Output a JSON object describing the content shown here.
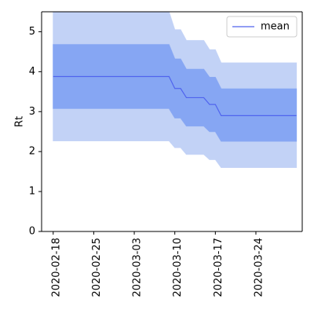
{
  "chart_data": {
    "type": "area",
    "ylabel": "Rt",
    "xlabel": "",
    "ylim": [
      0,
      5.5
    ],
    "xlim": [
      "2020-02-16",
      "2020-04-01"
    ],
    "x_ticks": [
      "2020-02-18",
      "2020-02-25",
      "2020-03-03",
      "2020-03-10",
      "2020-03-17",
      "2020-03-24"
    ],
    "y_ticks": [
      0,
      1,
      2,
      3,
      4,
      5
    ],
    "legend": {
      "position": "top-right",
      "entries": [
        "mean"
      ]
    },
    "grid": false,
    "colors": {
      "mean_line": "#5064ee",
      "band_inner": "#86a6f3",
      "band_outer": "#c2d2f6",
      "axes": "#000000"
    },
    "series": [
      {
        "name": "mean",
        "x": [
          "2020-02-18",
          "2020-03-09",
          "2020-03-10",
          "2020-03-11",
          "2020-03-12",
          "2020-03-15",
          "2020-03-16",
          "2020-03-17",
          "2020-03-18",
          "2020-03-31"
        ],
        "values": [
          3.88,
          3.88,
          3.58,
          3.58,
          3.35,
          3.35,
          3.18,
          3.18,
          2.9,
          2.9
        ]
      }
    ],
    "bands": [
      {
        "level": "outer",
        "x": [
          "2020-02-18",
          "2020-03-09",
          "2020-03-10",
          "2020-03-11",
          "2020-03-12",
          "2020-03-15",
          "2020-03-16",
          "2020-03-17",
          "2020-03-18",
          "2020-03-31"
        ],
        "lower": [
          2.27,
          2.27,
          2.1,
          2.1,
          1.93,
          1.93,
          1.8,
          1.8,
          1.6,
          1.6
        ],
        "upper": [
          5.5,
          5.5,
          5.05,
          5.05,
          4.78,
          4.78,
          4.55,
          4.55,
          4.22,
          4.22
        ]
      },
      {
        "level": "inner",
        "x": [
          "2020-02-18",
          "2020-03-09",
          "2020-03-10",
          "2020-03-11",
          "2020-03-12",
          "2020-03-15",
          "2020-03-16",
          "2020-03-17",
          "2020-03-18",
          "2020-03-31"
        ],
        "lower": [
          3.08,
          3.08,
          2.84,
          2.84,
          2.64,
          2.64,
          2.5,
          2.5,
          2.26,
          2.26
        ],
        "upper": [
          4.68,
          4.68,
          4.32,
          4.32,
          4.06,
          4.06,
          3.86,
          3.86,
          3.57,
          3.57
        ]
      }
    ]
  }
}
